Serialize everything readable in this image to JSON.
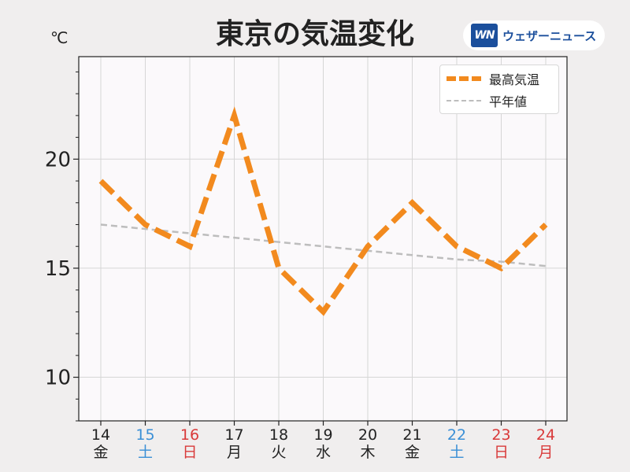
{
  "header": {
    "title": "東京の気温変化",
    "unit": "℃",
    "logo_mark": "WN",
    "logo_text": "ウェザーニュース"
  },
  "colors": {
    "max_temp": "#f28a1e",
    "normal": "#bdbdbd",
    "saturday": "#3a8fd6",
    "sunday": "#d93a3a",
    "weekday": "#222222",
    "plot_bg": "#fbf9fb"
  },
  "chart_data": {
    "type": "line",
    "title": "東京の気温変化",
    "xlabel": "",
    "ylabel": "℃",
    "ylim": [
      8,
      24.7
    ],
    "yticks": [
      10,
      15,
      20
    ],
    "grid": true,
    "legend_position": "top-right",
    "categories": [
      {
        "day": "14",
        "weekday": "金",
        "type": "weekday"
      },
      {
        "day": "15",
        "weekday": "土",
        "type": "saturday"
      },
      {
        "day": "16",
        "weekday": "日",
        "type": "sunday"
      },
      {
        "day": "17",
        "weekday": "月",
        "type": "weekday"
      },
      {
        "day": "18",
        "weekday": "火",
        "type": "weekday"
      },
      {
        "day": "19",
        "weekday": "水",
        "type": "weekday"
      },
      {
        "day": "20",
        "weekday": "木",
        "type": "weekday"
      },
      {
        "day": "21",
        "weekday": "金",
        "type": "weekday"
      },
      {
        "day": "22",
        "weekday": "土",
        "type": "saturday"
      },
      {
        "day": "23",
        "weekday": "日",
        "type": "sunday"
      },
      {
        "day": "24",
        "weekday": "月",
        "type": "sunday"
      }
    ],
    "series": [
      {
        "name": "最高気温",
        "values": [
          19,
          17,
          16,
          22,
          15,
          13,
          16,
          18,
          16,
          15,
          17
        ]
      },
      {
        "name": "平年値",
        "values": [
          17.0,
          16.8,
          16.6,
          16.4,
          16.2,
          16.0,
          15.8,
          15.6,
          15.4,
          15.3,
          15.1
        ]
      }
    ]
  }
}
